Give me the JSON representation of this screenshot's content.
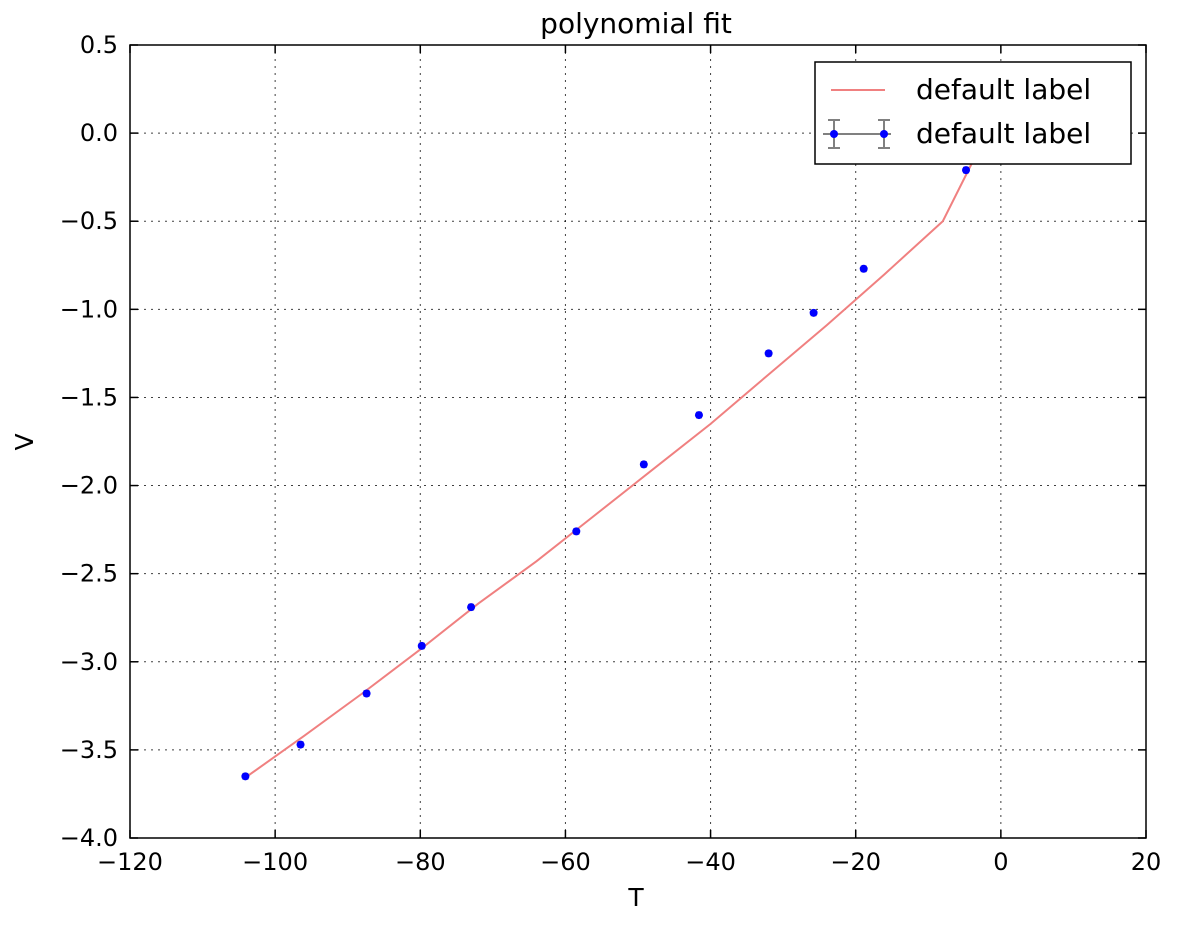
{
  "chart_data": {
    "type": "line",
    "title": "polynomial fit",
    "xlabel": "T",
    "ylabel": "V",
    "xlim": [
      -120,
      20
    ],
    "ylim": [
      -4.0,
      0.5
    ],
    "x_ticks": [
      -120,
      -100,
      -80,
      -60,
      -40,
      -20,
      0,
      20
    ],
    "x_tick_labels": [
      "−120",
      "−100",
      "−80",
      "−60",
      "−40",
      "−20",
      "0",
      "20"
    ],
    "y_ticks": [
      0.5,
      0.0,
      -0.5,
      -1.0,
      -1.5,
      -2.0,
      -2.5,
      -3.0,
      -3.5,
      -4.0
    ],
    "y_tick_labels": [
      "0.5",
      "0.0",
      "−0.5",
      "−1.0",
      "−1.5",
      "−2.0",
      "−2.5",
      "−3.0",
      "−3.5",
      "−4.0"
    ],
    "grid": true,
    "legend_position": "upper-right",
    "colors": {
      "fit_line": "#f08080",
      "points": "#0000ff",
      "error_bars": "#808080",
      "frame": "#000000"
    },
    "series": [
      {
        "name": "default label",
        "kind": "line",
        "x": [
          -104.2,
          -96.0,
          -88.0,
          -80.0,
          -72.0,
          -64.0,
          -56.0,
          -48.0,
          -40.0,
          -32.0,
          -24.0,
          -16.0,
          -8.0,
          -3.5
        ],
        "y": [
          -3.66,
          -3.42,
          -3.18,
          -2.93,
          -2.67,
          -2.43,
          -2.17,
          -1.91,
          -1.65,
          -1.37,
          -1.09,
          -0.8,
          -0.5,
          -0.13
        ]
      },
      {
        "name": "default label",
        "kind": "errorbar",
        "x": [
          -104.1,
          -96.5,
          -87.4,
          -79.8,
          -73.0,
          -58.5,
          -49.2,
          -41.6,
          -32.0,
          -25.8,
          -18.9,
          -4.8
        ],
        "y": [
          -3.65,
          -3.47,
          -3.18,
          -2.91,
          -2.69,
          -2.26,
          -1.88,
          -1.6,
          -1.25,
          -1.02,
          -0.77,
          -0.21
        ],
        "x_err": [
          0.4,
          0.4,
          0.4,
          0.4,
          0.4,
          0.4,
          0.4,
          0.4,
          0.4,
          0.4,
          0.4,
          0.4
        ],
        "y_err": [
          0.015,
          0.015,
          0.015,
          0.015,
          0.015,
          0.015,
          0.015,
          0.015,
          0.015,
          0.015,
          0.015,
          0.015
        ]
      }
    ]
  }
}
